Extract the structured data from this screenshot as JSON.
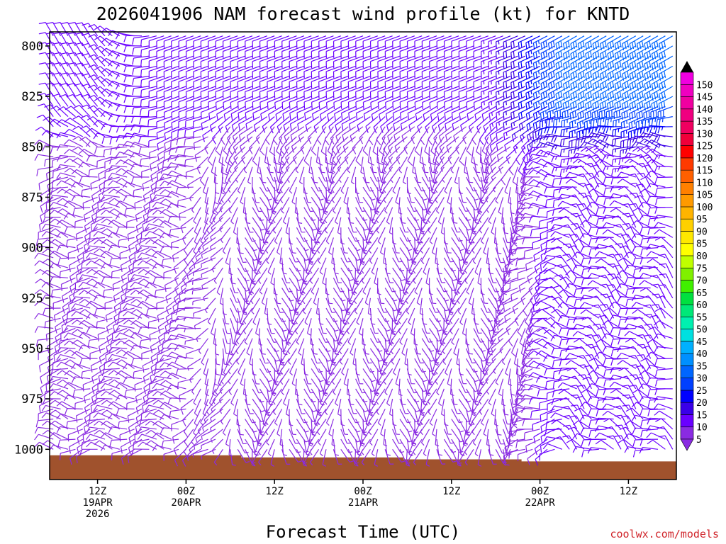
{
  "chart_data": {
    "type": "wind-profile",
    "title": "2026041906 NAM forecast wind profile (kt) for KNTD",
    "xlabel": "Forecast Time (UTC)",
    "credit": "coolwx.com/models",
    "y_axis": {
      "unit": "hPa",
      "ticks": [
        "800",
        "825",
        "850",
        "875",
        "900",
        "925",
        "950",
        "975",
        "1000"
      ],
      "range": [
        793,
        1015
      ]
    },
    "x_axis": {
      "unit": "forecast hour",
      "range": [
        -0.5,
        84.5
      ],
      "ticks": [
        {
          "hour": 6,
          "lines": [
            "12Z",
            "19APR",
            "2026"
          ]
        },
        {
          "hour": 18,
          "lines": [
            "00Z",
            "20APR"
          ]
        },
        {
          "hour": 30,
          "lines": [
            "12Z"
          ]
        },
        {
          "hour": 42,
          "lines": [
            "00Z",
            "21APR"
          ]
        },
        {
          "hour": 54,
          "lines": [
            "12Z"
          ]
        },
        {
          "hour": 66,
          "lines": [
            "00Z",
            "22APR"
          ]
        },
        {
          "hour": 78,
          "lines": [
            "12Z"
          ]
        }
      ]
    },
    "colorbar": {
      "unit": "kt",
      "labels": [
        "5",
        "10",
        "15",
        "20",
        "25",
        "30",
        "35",
        "40",
        "45",
        "50",
        "55",
        "60",
        "65",
        "70",
        "75",
        "80",
        "85",
        "90",
        "95",
        "100",
        "105",
        "110",
        "115",
        "120",
        "125",
        "130",
        "135",
        "140",
        "145",
        "150"
      ],
      "colors": [
        "#8a2be2",
        "#6a00ff",
        "#3a00e8",
        "#0000ff",
        "#0040ff",
        "#0066ff",
        "#0090ff",
        "#00b0ff",
        "#00e0e0",
        "#00f0b0",
        "#00e878",
        "#00e040",
        "#40f000",
        "#80f000",
        "#c0ff00",
        "#ffff00",
        "#ffe800",
        "#ffd000",
        "#ffb400",
        "#ff9a00",
        "#ff8000",
        "#ff6000",
        "#ff3a00",
        "#ff0000",
        "#f0003a",
        "#f00060",
        "#f00080",
        "#f000a0",
        "#f000c0",
        "#f000e0"
      ]
    },
    "terrain": {
      "color": "#a0522d",
      "surface_pressure_hpa": [
        1003,
        1003,
        1003,
        1003,
        1003,
        1003,
        1003,
        1003,
        1003,
        1003,
        1003,
        1003,
        1003,
        1003,
        1003,
        1003,
        1003,
        1003,
        1003,
        1003,
        1003,
        1003,
        1003,
        1003,
        1003,
        1003,
        1004,
        1004,
        1004,
        1004,
        1004,
        1004,
        1004,
        1004,
        1004,
        1004,
        1004,
        1004,
        1004,
        1004,
        1004,
        1004,
        1004,
        1004,
        1004,
        1004,
        1004,
        1004,
        1005,
        1005,
        1005,
        1005,
        1005,
        1005,
        1005,
        1005,
        1005,
        1005,
        1005,
        1005,
        1005,
        1005,
        1005,
        1005,
        1006,
        1006,
        1006,
        1006,
        1006,
        1006,
        1006,
        1006,
        1006,
        1006,
        1006,
        1006,
        1006,
        1006,
        1006,
        1006,
        1006,
        1006,
        1006,
        1006,
        1006
      ]
    },
    "wind_levels_hpa": [
      795,
      800,
      805,
      810,
      815,
      820,
      825,
      830,
      835,
      840,
      845,
      850,
      855,
      860,
      865,
      870,
      875,
      880,
      885,
      890,
      895,
      900,
      905,
      910,
      915,
      920,
      925,
      930,
      935,
      940,
      945,
      950,
      955,
      960,
      965,
      970,
      975,
      980,
      985,
      990,
      995,
      1000
    ],
    "wind_hours": [
      0,
      1,
      2,
      3,
      4,
      5,
      6,
      7,
      8,
      9,
      10,
      11,
      12,
      13,
      14,
      15,
      16,
      17,
      18,
      19,
      20,
      21,
      22,
      23,
      24,
      25,
      26,
      27,
      28,
      29,
      30,
      31,
      32,
      33,
      34,
      35,
      36,
      37,
      38,
      39,
      40,
      41,
      42,
      43,
      44,
      45,
      46,
      47,
      48,
      49,
      50,
      51,
      52,
      53,
      54,
      55,
      56,
      57,
      58,
      59,
      60,
      61,
      62,
      63,
      64,
      65,
      66,
      67,
      68,
      69,
      70,
      71,
      72,
      73,
      74,
      75,
      76,
      77,
      78,
      79,
      80,
      81,
      82,
      83,
      84
    ],
    "wind_description": {
      "direction_from_deg_by_regime": {
        "upper_levels_early": 330,
        "upper_levels_mid": 250,
        "upper_levels_late": 240,
        "lower_levels_early": 270,
        "lower_levels_mid_variable": 180,
        "lower_levels_late": 300
      },
      "speed_kt_by_regime": {
        "upper_levels_early": 12,
        "upper_levels_mid": 12,
        "upper_levels_late": 32,
        "lower_levels_early": 8,
        "lower_levels_mid_variable": 6,
        "lower_levels_late": 12
      }
    }
  }
}
